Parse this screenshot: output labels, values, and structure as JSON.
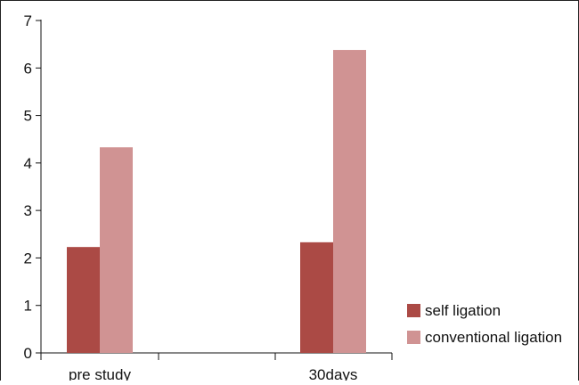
{
  "chart_data": {
    "type": "bar",
    "categories": [
      "pre study",
      "30days"
    ],
    "series": [
      {
        "name": "self ligation",
        "values": [
          2.23,
          2.33
        ],
        "color": "#ab4a45"
      },
      {
        "name": "conventional ligation",
        "values": [
          4.33,
          6.38
        ],
        "color": "#d09393"
      }
    ],
    "ylim": [
      0,
      7
    ],
    "yticks": [
      0,
      1,
      2,
      3,
      4,
      5,
      6,
      7
    ],
    "ytick_labels": [
      "0",
      "1",
      "2",
      "3",
      "4",
      "5",
      "6",
      "7"
    ],
    "title": "",
    "xlabel": "",
    "ylabel": "",
    "grid": false,
    "legend_position": "bottom-right"
  }
}
